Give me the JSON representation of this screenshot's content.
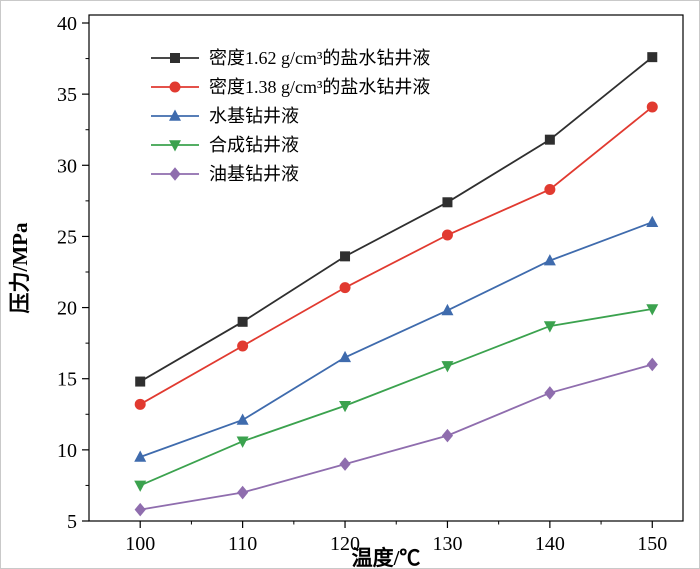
{
  "chart_data": {
    "type": "line",
    "title": "",
    "xlabel": "温度/℃",
    "ylabel": "压力/MPa",
    "x": [
      100,
      110,
      120,
      130,
      140,
      150
    ],
    "xlim": [
      95,
      153
    ],
    "ylim": [
      5,
      40
    ],
    "x_major_ticks": [
      100,
      110,
      120,
      130,
      140,
      150
    ],
    "y_major_ticks": [
      5,
      10,
      15,
      20,
      25,
      30,
      35,
      40
    ],
    "grid": false,
    "legend_position": "upper-left",
    "series": [
      {
        "name": "密度1.62 g/cm³的盐水钻井液",
        "marker": "square",
        "color": "#2f2f2f",
        "values": [
          14.8,
          19.0,
          23.6,
          27.4,
          31.8,
          37.6
        ]
      },
      {
        "name": "密度1.38 g/cm³的盐水钻井液",
        "marker": "circle",
        "color": "#e13a30",
        "values": [
          13.2,
          17.3,
          21.4,
          25.1,
          28.3,
          34.1
        ]
      },
      {
        "name": "水基钻井液",
        "marker": "triangle-up",
        "color": "#3f6bad",
        "values": [
          9.5,
          12.1,
          16.5,
          19.8,
          23.3,
          26.0
        ]
      },
      {
        "name": "合成钻井液",
        "marker": "triangle-down",
        "color": "#3ba24e",
        "values": [
          7.5,
          10.6,
          13.1,
          15.9,
          18.7,
          19.9
        ]
      },
      {
        "name": "油基钻井液",
        "marker": "diamond",
        "color": "#8f6dae",
        "values": [
          5.8,
          7.0,
          9.0,
          11.0,
          14.0,
          16.0
        ]
      }
    ]
  }
}
